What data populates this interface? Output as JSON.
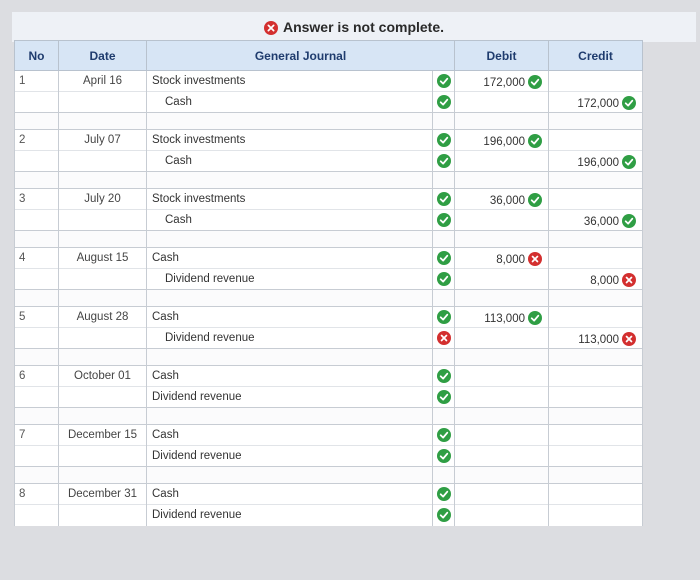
{
  "banner": {
    "text": "Answer is not complete."
  },
  "headers": {
    "no": "No",
    "date": "Date",
    "journal": "General Journal",
    "debit": "Debit",
    "credit": "Credit"
  },
  "entries": [
    {
      "no": "1",
      "date": "April 16",
      "debit_account": "Stock investments",
      "credit_account": "Cash",
      "debit_check": "ok",
      "credit_check": "ok",
      "debit": "172,000",
      "debit_status": "ok",
      "credit": "172,000",
      "credit_status": "ok"
    },
    {
      "no": "2",
      "date": "July 07",
      "debit_account": "Stock investments",
      "credit_account": "Cash",
      "debit_check": "ok",
      "credit_check": "ok",
      "debit": "196,000",
      "debit_status": "ok",
      "credit": "196,000",
      "credit_status": "ok"
    },
    {
      "no": "3",
      "date": "July 20",
      "debit_account": "Stock investments",
      "credit_account": "Cash",
      "debit_check": "ok",
      "credit_check": "ok",
      "debit": "36,000",
      "debit_status": "ok",
      "credit": "36,000",
      "credit_status": "ok"
    },
    {
      "no": "4",
      "date": "August 15",
      "debit_account": "Cash",
      "credit_account": "Dividend revenue",
      "debit_check": "ok",
      "credit_check": "ok",
      "debit": "8,000",
      "debit_status": "bad",
      "credit": "8,000",
      "credit_status": "bad"
    },
    {
      "no": "5",
      "date": "August 28",
      "debit_account": "Cash",
      "credit_account": "Dividend revenue",
      "debit_check": "ok",
      "credit_check": "bad",
      "debit": "113,000",
      "debit_status": "ok",
      "credit": "113,000",
      "credit_status": "bad"
    },
    {
      "no": "6",
      "date": "October 01",
      "debit_account": "Cash",
      "credit_account": "Dividend revenue",
      "debit_check": "ok",
      "credit_check": "ok",
      "debit": "",
      "debit_status": "",
      "credit": "",
      "credit_status": ""
    },
    {
      "no": "7",
      "date": "December 15",
      "debit_account": "Cash",
      "credit_account": "Dividend revenue",
      "debit_check": "ok",
      "credit_check": "ok",
      "debit": "",
      "debit_status": "",
      "credit": "",
      "credit_status": ""
    },
    {
      "no": "8",
      "date": "December 31",
      "debit_account": "Cash",
      "credit_account": "Dividend revenue",
      "debit_check": "ok",
      "credit_check": "ok",
      "debit": "",
      "debit_status": "",
      "credit": "",
      "credit_status": ""
    }
  ],
  "indent_credit": [
    true,
    true,
    true,
    true,
    true,
    false,
    false,
    false
  ],
  "colors": {
    "ok": "#2f9e44",
    "bad": "#d32f2f",
    "header_bg": "#d7e5f5"
  },
  "icons": {
    "ok": "check-circle-icon",
    "bad": "x-circle-icon"
  }
}
